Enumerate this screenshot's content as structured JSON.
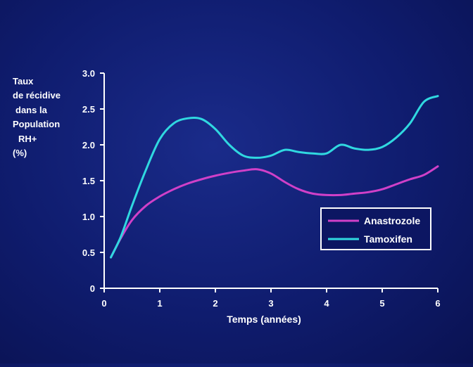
{
  "chart_data": {
    "type": "line",
    "ylabel_lines": [
      "Taux",
      "de récidive",
      "dans la",
      "Population",
      "RH+",
      "(%)"
    ],
    "xlabel": "Temps (années)",
    "xlim": [
      0,
      6
    ],
    "ylim": [
      0,
      3.0
    ],
    "x_ticks": [
      0,
      1,
      2,
      3,
      4,
      5,
      6
    ],
    "x_tick_labels": [
      "0",
      "1",
      "2",
      "3",
      "4",
      "5",
      "6"
    ],
    "y_ticks": [
      0,
      0.5,
      1.0,
      1.5,
      2.0,
      2.5,
      3.0
    ],
    "y_tick_labels": [
      "0",
      "0.5",
      "1.0",
      "1.5",
      "2.0",
      "2.5",
      "3.0"
    ],
    "grid": false,
    "legend_position": "bottom-right",
    "series": [
      {
        "name": "Anastrozole",
        "color": "#d040c8",
        "x": [
          0.12,
          0.3,
          0.5,
          0.75,
          1.0,
          1.25,
          1.5,
          1.75,
          2.0,
          2.25,
          2.5,
          2.75,
          3.0,
          3.25,
          3.5,
          3.75,
          4.0,
          4.25,
          4.5,
          4.75,
          5.0,
          5.25,
          5.5,
          5.75,
          6.0
        ],
        "y": [
          0.43,
          0.7,
          0.95,
          1.15,
          1.28,
          1.38,
          1.46,
          1.52,
          1.57,
          1.61,
          1.64,
          1.66,
          1.6,
          1.48,
          1.38,
          1.32,
          1.3,
          1.3,
          1.32,
          1.34,
          1.38,
          1.45,
          1.52,
          1.58,
          1.7
        ]
      },
      {
        "name": "Tamoxifen",
        "color": "#30d8e0",
        "x": [
          0.12,
          0.3,
          0.5,
          0.75,
          1.0,
          1.25,
          1.5,
          1.75,
          2.0,
          2.25,
          2.5,
          2.75,
          3.0,
          3.25,
          3.5,
          3.75,
          4.0,
          4.25,
          4.5,
          4.75,
          5.0,
          5.25,
          5.5,
          5.75,
          6.0
        ],
        "y": [
          0.43,
          0.72,
          1.15,
          1.65,
          2.08,
          2.3,
          2.37,
          2.36,
          2.22,
          2.0,
          1.85,
          1.82,
          1.85,
          1.93,
          1.9,
          1.88,
          1.88,
          2.0,
          1.95,
          1.93,
          1.97,
          2.1,
          2.3,
          2.6,
          2.68
        ]
      }
    ]
  }
}
